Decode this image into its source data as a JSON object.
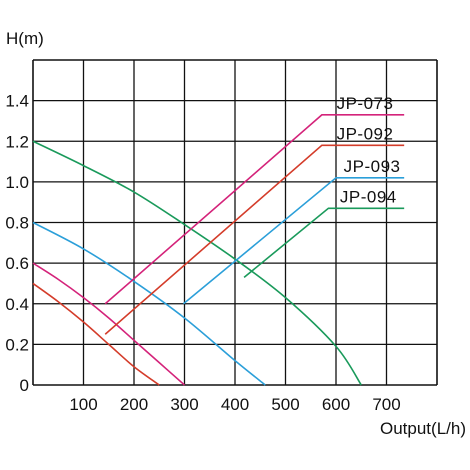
{
  "chart_data": {
    "type": "line",
    "xlabel": "Output(L/h)",
    "ylabel": "H(m)",
    "xlim": [
      0,
      800
    ],
    "ylim": [
      0,
      1.6
    ],
    "x_ticks": [
      {
        "value": 100,
        "label": "100"
      },
      {
        "value": 200,
        "label": "200"
      },
      {
        "value": 300,
        "label": "300"
      },
      {
        "value": 400,
        "label": "400"
      },
      {
        "value": 500,
        "label": "500"
      },
      {
        "value": 600,
        "label": "600"
      },
      {
        "value": 700,
        "label": "700"
      }
    ],
    "y_ticks": [
      {
        "value": 0,
        "label": "0"
      },
      {
        "value": 0.2,
        "label": "0.2"
      },
      {
        "value": 0.4,
        "label": "0.4"
      },
      {
        "value": 0.6,
        "label": "0.6"
      },
      {
        "value": 0.8,
        "label": "0.8"
      },
      {
        "value": 1.0,
        "label": "1.0"
      },
      {
        "value": 1.2,
        "label": "1.2"
      },
      {
        "value": 1.4,
        "label": "1.4"
      }
    ],
    "grid": true,
    "legend_placement": "right",
    "series": [
      {
        "name": "JP-073",
        "color": "#d4237a",
        "x": [
          0,
          50,
          100,
          150,
          200,
          250,
          300
        ],
        "y": [
          0.6,
          0.52,
          0.43,
          0.33,
          0.22,
          0.11,
          0.0
        ],
        "callout": {
          "anchor": [
            143,
            0.4
          ],
          "elbow": [
            572,
            1.33
          ],
          "end": [
            735,
            1.33
          ]
        }
      },
      {
        "name": "JP-092",
        "color": "#d43c2a",
        "x": [
          0,
          50,
          100,
          150,
          200,
          250
        ],
        "y": [
          0.5,
          0.41,
          0.31,
          0.2,
          0.09,
          0.0
        ],
        "callout": {
          "anchor": [
            143,
            0.25
          ],
          "elbow": [
            572,
            1.18
          ],
          "end": [
            735,
            1.18
          ]
        }
      },
      {
        "name": "JP-093",
        "color": "#2b9fd9",
        "x": [
          0,
          100,
          200,
          300,
          400,
          460
        ],
        "y": [
          0.8,
          0.67,
          0.51,
          0.33,
          0.12,
          0.0
        ],
        "callout": {
          "anchor": [
            298,
            0.4
          ],
          "elbow": [
            600,
            1.02
          ],
          "end": [
            735,
            1.02
          ]
        }
      },
      {
        "name": "JP-094",
        "color": "#1a9a5b",
        "x": [
          0,
          100,
          200,
          300,
          400,
          500,
          600,
          650
        ],
        "y": [
          1.2,
          1.08,
          0.95,
          0.79,
          0.62,
          0.43,
          0.19,
          0.0
        ],
        "callout": {
          "anchor": [
            418,
            0.53
          ],
          "elbow": [
            585,
            0.87
          ],
          "end": [
            735,
            0.87
          ]
        }
      }
    ]
  }
}
